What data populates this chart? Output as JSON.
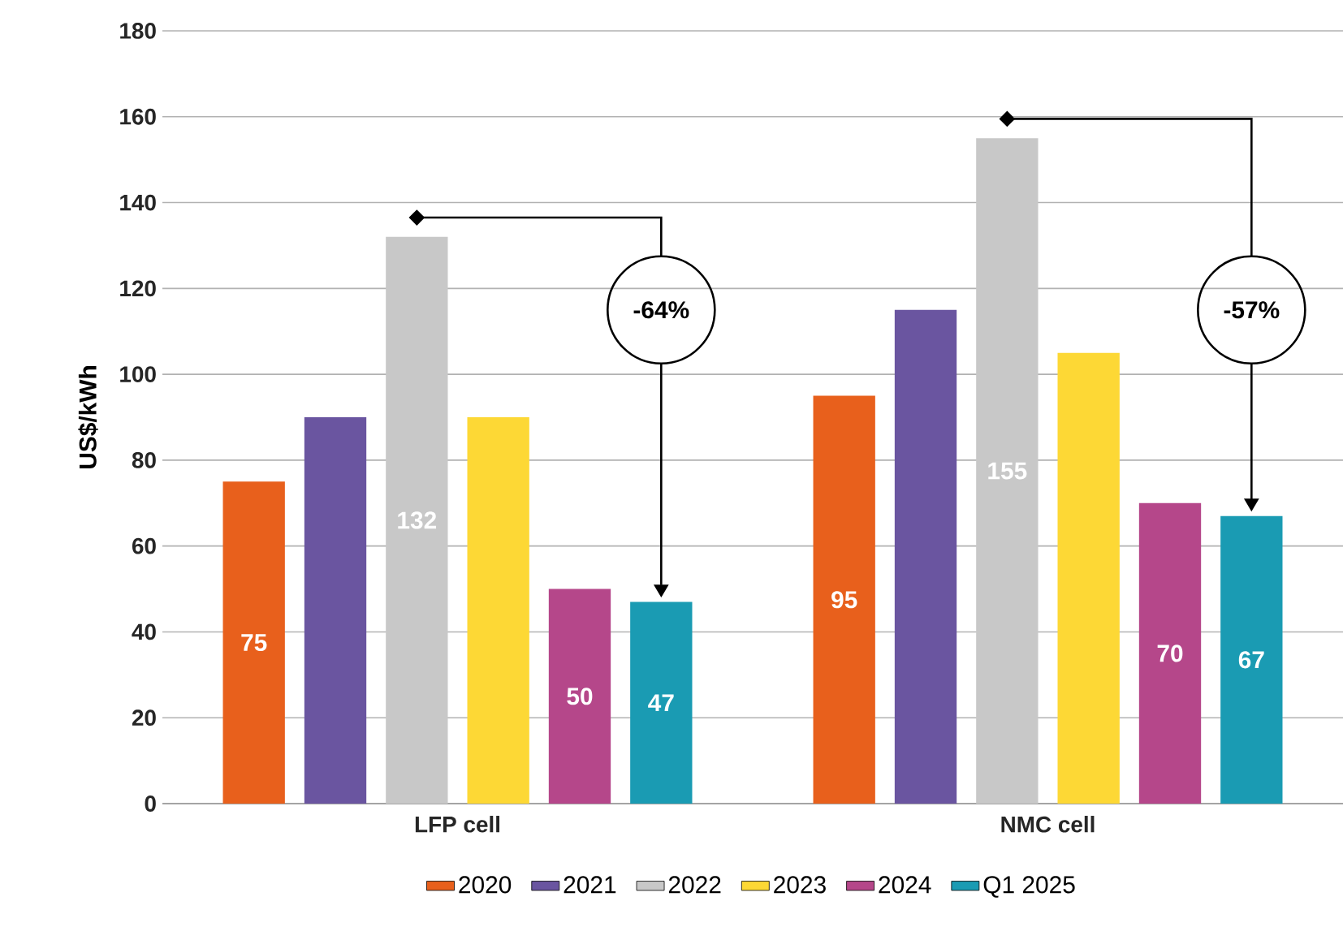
{
  "chart_data": {
    "type": "bar",
    "ylabel": "US$/kWh",
    "categories": [
      "LFP cell",
      "NMC cell"
    ],
    "series": [
      {
        "name": "2020",
        "color": "#e8601c",
        "values": [
          75,
          95
        ],
        "value_labels": [
          "75",
          "95"
        ]
      },
      {
        "name": "2021",
        "color": "#6a55a0",
        "values": [
          90,
          115
        ],
        "value_labels": [
          null,
          null
        ]
      },
      {
        "name": "2022",
        "color": "#c8c8c8",
        "values": [
          132,
          155
        ],
        "value_labels": [
          "132",
          "155"
        ]
      },
      {
        "name": "2023",
        "color": "#fdd835",
        "values": [
          90,
          105
        ],
        "value_labels": [
          null,
          null
        ]
      },
      {
        "name": "2024",
        "color": "#b5478a",
        "values": [
          50,
          70
        ],
        "value_labels": [
          "50",
          "70"
        ]
      },
      {
        "name": "Q1 2025",
        "color": "#1a9bb3",
        "values": [
          47,
          67
        ],
        "value_labels": [
          "47",
          "67"
        ]
      }
    ],
    "annotations": [
      "-64%",
      "-57%"
    ],
    "ylim": [
      0,
      180
    ],
    "yticks": [
      0,
      20,
      40,
      60,
      80,
      100,
      120,
      140,
      160,
      180
    ],
    "grid": "y",
    "legend": "bottom"
  }
}
